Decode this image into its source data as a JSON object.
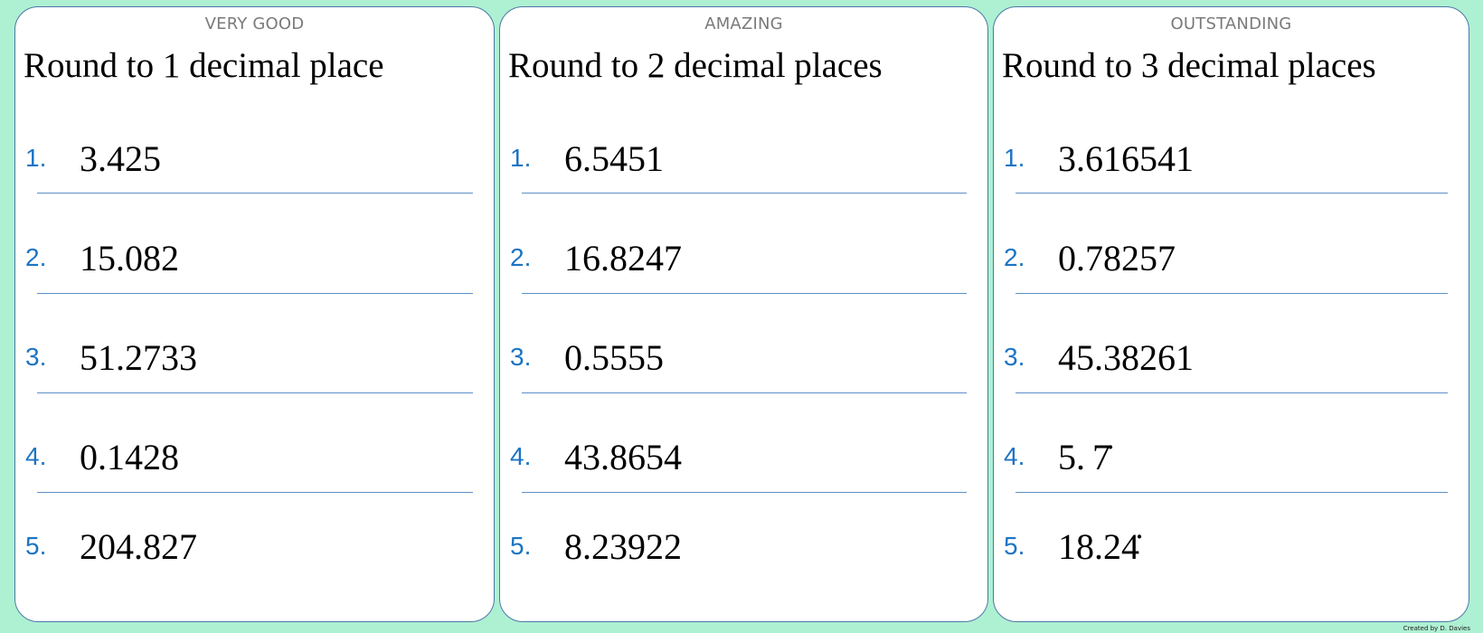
{
  "colors": {
    "background": "#aef0d2",
    "card_border": "#4a78a8",
    "number_color": "#1c74c4",
    "line_color": "#5e8fc8"
  },
  "cards": [
    {
      "level": "VERY GOOD",
      "title": "Round to 1 decimal place",
      "questions": [
        {
          "n": "1.",
          "v": "3.425"
        },
        {
          "n": "2.",
          "v": "15.082"
        },
        {
          "n": "3.",
          "v": "51.2733"
        },
        {
          "n": "4.",
          "v": "0.1428"
        },
        {
          "n": "5.",
          "v": "204.827"
        }
      ]
    },
    {
      "level": "AMAZING",
      "title": "Round to 2 decimal places",
      "questions": [
        {
          "n": "1.",
          "v": "6.5451"
        },
        {
          "n": "2.",
          "v": "16.8247"
        },
        {
          "n": "3.",
          "v": "0.5555"
        },
        {
          "n": "4.",
          "v": "43.8654"
        },
        {
          "n": "5.",
          "v": "8.23922"
        }
      ]
    },
    {
      "level": "OUTSTANDING",
      "title": "Round to 3 decimal places",
      "questions": [
        {
          "n": "1.",
          "v": "3.616541"
        },
        {
          "n": "2.",
          "v": "0.78257"
        },
        {
          "n": "3.",
          "v": "45.38261"
        },
        {
          "n": "4.",
          "v": "5. 7̇"
        },
        {
          "n": "5.",
          "v": "18.24̇"
        }
      ]
    }
  ],
  "credit": "Created by D. Davies"
}
